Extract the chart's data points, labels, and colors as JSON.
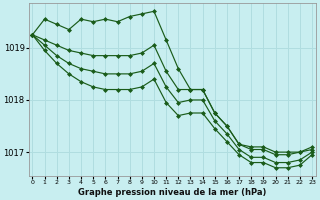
{
  "title": "Graphe pression niveau de la mer (hPa)",
  "background_color": "#c8eef0",
  "grid_color": "#b0dde0",
  "line_color": "#1a5c1a",
  "x_ticks": [
    0,
    1,
    2,
    3,
    4,
    5,
    6,
    7,
    8,
    9,
    10,
    11,
    12,
    13,
    14,
    15,
    16,
    17,
    18,
    19,
    20,
    21,
    22,
    23
  ],
  "y_ticks": [
    1017,
    1018,
    1019
  ],
  "ylim": [
    1016.55,
    1019.85
  ],
  "xlim": [
    -0.3,
    23.3
  ],
  "series": [
    [
      1019.25,
      1019.55,
      1019.45,
      1019.35,
      1019.55,
      1019.5,
      1019.55,
      1019.5,
      1019.6,
      1019.65,
      1019.7,
      1019.15,
      1018.6,
      1018.2,
      1018.2,
      1017.75,
      1017.5,
      1017.15,
      1017.05,
      1017.05,
      1016.95,
      1016.95,
      1017.0,
      1017.05
    ],
    [
      1019.25,
      1019.15,
      1019.05,
      1018.95,
      1018.9,
      1018.85,
      1018.85,
      1018.85,
      1018.85,
      1018.9,
      1019.05,
      1018.55,
      1018.2,
      1018.2,
      1018.2,
      1017.75,
      1017.5,
      1017.15,
      1017.1,
      1017.1,
      1017.0,
      1017.0,
      1017.0,
      1017.1
    ],
    [
      1019.25,
      1019.05,
      1018.85,
      1018.7,
      1018.6,
      1018.55,
      1018.5,
      1018.5,
      1018.5,
      1018.55,
      1018.7,
      1018.25,
      1017.95,
      1018.0,
      1018.0,
      1017.6,
      1017.35,
      1017.05,
      1016.9,
      1016.9,
      1016.8,
      1016.8,
      1016.85,
      1017.0
    ],
    [
      1019.25,
      1018.95,
      1018.7,
      1018.5,
      1018.35,
      1018.25,
      1018.2,
      1018.2,
      1018.2,
      1018.25,
      1018.4,
      1017.95,
      1017.7,
      1017.75,
      1017.75,
      1017.45,
      1017.2,
      1016.95,
      1016.8,
      1016.8,
      1016.7,
      1016.7,
      1016.75,
      1016.95
    ]
  ]
}
